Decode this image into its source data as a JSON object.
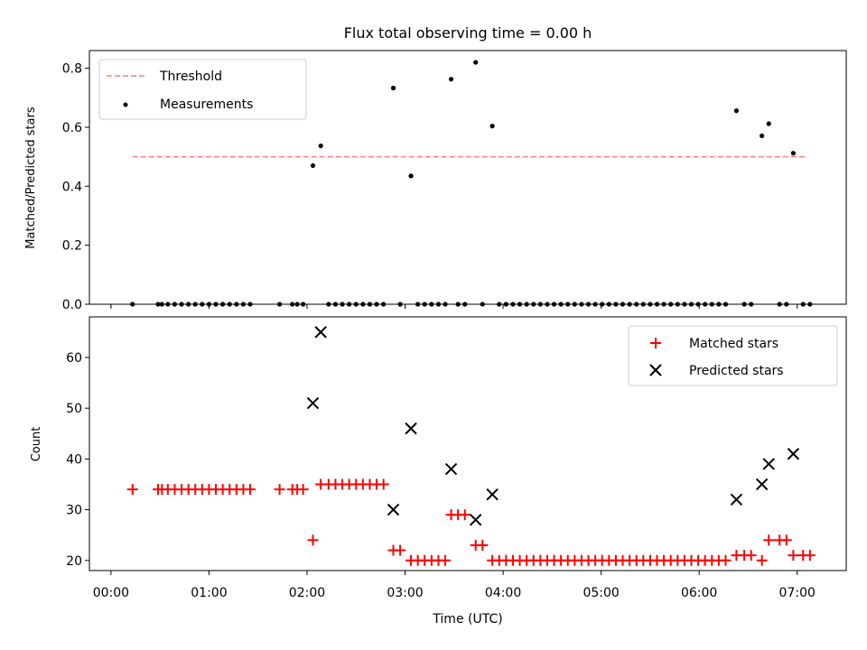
{
  "figure": {
    "title": "Flux total observing time = 0.00 h"
  },
  "chart_data": [
    {
      "type": "scatter",
      "ylabel": "Matched/Predicted stars",
      "ylim": [
        0,
        0.86
      ],
      "xlim": [
        -0.22,
        7.5
      ],
      "x_unit": "hours since 00:00 UTC",
      "yticks": [
        0.0,
        0.2,
        0.4,
        0.6,
        0.8
      ],
      "ytick_labels": [
        "0.0",
        "0.2",
        "0.4",
        "0.6",
        "0.8"
      ],
      "legend": {
        "placement": "upper-left",
        "entries": [
          "Threshold",
          "Measurements"
        ]
      },
      "threshold": {
        "name": "Threshold",
        "y": 0.5,
        "x": [
          0.22,
          7.1
        ],
        "color": "#ff7f7f",
        "style": "dashed"
      },
      "series": [
        {
          "name": "Measurements",
          "color": "#000000",
          "marker": "dot",
          "x": [
            0.22,
            0.48,
            0.52,
            0.58,
            0.65,
            0.72,
            0.79,
            0.86,
            0.93,
            1.0,
            1.07,
            1.14,
            1.21,
            1.28,
            1.35,
            1.42,
            1.72,
            1.85,
            1.9,
            1.96,
            2.06,
            2.14,
            2.22,
            2.29,
            2.36,
            2.43,
            2.5,
            2.57,
            2.64,
            2.71,
            2.78,
            2.88,
            2.95,
            3.06,
            3.13,
            3.2,
            3.27,
            3.34,
            3.41,
            3.47,
            3.54,
            3.61,
            3.72,
            3.79,
            3.89,
            3.96,
            4.03,
            4.1,
            4.17,
            4.24,
            4.31,
            4.38,
            4.45,
            4.52,
            4.59,
            4.66,
            4.73,
            4.8,
            4.87,
            4.94,
            5.01,
            5.08,
            5.15,
            5.22,
            5.29,
            5.36,
            5.43,
            5.5,
            5.57,
            5.64,
            5.71,
            5.78,
            5.85,
            5.92,
            5.99,
            6.06,
            6.13,
            6.2,
            6.27,
            6.38,
            6.46,
            6.53,
            6.64,
            6.71,
            6.82,
            6.89,
            6.96,
            7.06,
            7.13
          ],
          "y": [
            0,
            0,
            0,
            0,
            0,
            0,
            0,
            0,
            0,
            0,
            0,
            0,
            0,
            0,
            0,
            0,
            0,
            0,
            0,
            0,
            0.47,
            0.537,
            0,
            0,
            0,
            0,
            0,
            0,
            0,
            0,
            0,
            0.733,
            0,
            0.435,
            0,
            0,
            0,
            0,
            0,
            0.763,
            0,
            0,
            0.82,
            0,
            0.604,
            0,
            0,
            0,
            0,
            0,
            0,
            0,
            0,
            0,
            0,
            0,
            0,
            0,
            0,
            0,
            0,
            0,
            0,
            0,
            0,
            0,
            0,
            0,
            0,
            0,
            0,
            0,
            0,
            0,
            0,
            0,
            0,
            0,
            0,
            0.656,
            0,
            0,
            0.571,
            0.612,
            0,
            0,
            0.512,
            0,
            0
          ]
        }
      ]
    },
    {
      "type": "scatter",
      "xlabel": "Time (UTC)",
      "ylabel": "Count",
      "ylim": [
        18,
        68
      ],
      "xlim": [
        -0.22,
        7.5
      ],
      "x_unit": "hours since 00:00 UTC",
      "xticks": [
        0,
        1,
        2,
        3,
        4,
        5,
        6,
        7
      ],
      "xtick_labels": [
        "00:00",
        "01:00",
        "02:00",
        "03:00",
        "04:00",
        "05:00",
        "06:00",
        "07:00"
      ],
      "yticks": [
        20,
        30,
        40,
        50,
        60
      ],
      "ytick_labels": [
        "20",
        "30",
        "40",
        "50",
        "60"
      ],
      "legend": {
        "placement": "upper-right",
        "entries": [
          "Matched stars",
          "Predicted stars"
        ]
      },
      "series": [
        {
          "name": "Matched stars",
          "color": "#ff0000",
          "marker": "plus",
          "x": [
            0.22,
            0.48,
            0.52,
            0.58,
            0.65,
            0.72,
            0.79,
            0.86,
            0.93,
            1.0,
            1.07,
            1.14,
            1.21,
            1.28,
            1.35,
            1.42,
            1.72,
            1.85,
            1.9,
            1.96,
            2.06,
            2.14,
            2.22,
            2.29,
            2.36,
            2.43,
            2.5,
            2.57,
            2.64,
            2.71,
            2.78,
            2.88,
            2.95,
            3.06,
            3.13,
            3.2,
            3.27,
            3.34,
            3.41,
            3.47,
            3.54,
            3.61,
            3.72,
            3.79,
            3.89,
            3.96,
            4.03,
            4.1,
            4.17,
            4.24,
            4.31,
            4.38,
            4.45,
            4.52,
            4.59,
            4.66,
            4.73,
            4.8,
            4.87,
            4.94,
            5.01,
            5.08,
            5.15,
            5.22,
            5.29,
            5.36,
            5.43,
            5.5,
            5.57,
            5.64,
            5.71,
            5.78,
            5.85,
            5.92,
            5.99,
            6.06,
            6.13,
            6.2,
            6.27,
            6.38,
            6.46,
            6.53,
            6.64,
            6.71,
            6.82,
            6.89,
            6.96,
            7.06,
            7.13
          ],
          "y": [
            34,
            34,
            34,
            34,
            34,
            34,
            34,
            34,
            34,
            34,
            34,
            34,
            34,
            34,
            34,
            34,
            34,
            34,
            34,
            34,
            24,
            35,
            35,
            35,
            35,
            35,
            35,
            35,
            35,
            35,
            35,
            22,
            22,
            20,
            20,
            20,
            20,
            20,
            20,
            29,
            29,
            29,
            23,
            23,
            20,
            20,
            20,
            20,
            20,
            20,
            20,
            20,
            20,
            20,
            20,
            20,
            20,
            20,
            20,
            20,
            20,
            20,
            20,
            20,
            20,
            20,
            20,
            20,
            20,
            20,
            20,
            20,
            20,
            20,
            20,
            20,
            20,
            20,
            20,
            21,
            21,
            21,
            20,
            24,
            24,
            24,
            21,
            21,
            21
          ]
        },
        {
          "name": "Predicted stars",
          "color": "#000000",
          "marker": "x",
          "x": [
            2.06,
            2.14,
            2.88,
            3.06,
            3.47,
            3.72,
            3.89,
            6.38,
            6.64,
            6.71,
            6.96
          ],
          "y": [
            51,
            65,
            30,
            46,
            38,
            28,
            33,
            32,
            35,
            39,
            41
          ]
        }
      ]
    }
  ]
}
